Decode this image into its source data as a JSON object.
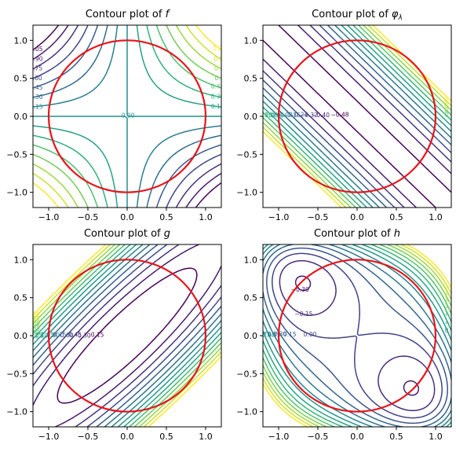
{
  "figure": {
    "background": "#ffffff"
  },
  "chart_data": [
    {
      "type": "contour",
      "title": "Contour plot of f",
      "title_main": "Contour plot of ",
      "title_symbol": "f",
      "function": "x*y",
      "xlim": [
        -1.2,
        1.2
      ],
      "ylim": [
        -1.2,
        1.2
      ],
      "xticks": [
        -1.0,
        -0.5,
        0.0,
        0.5,
        1.0
      ],
      "yticks": [
        -1.0,
        -0.5,
        0.0,
        0.5,
        1.0
      ],
      "xtick_labels": [
        "−1.0",
        "−0.5",
        "0.0",
        "0.5",
        "1.0"
      ],
      "ytick_labels": [
        "−1.0",
        "−0.5",
        "0.0",
        "0.5",
        "1.0"
      ],
      "levels": [
        -1.05,
        -0.9,
        -0.75,
        -0.6,
        -0.45,
        -0.3,
        -0.15,
        0.0,
        0.15,
        0.3,
        0.45,
        0.6,
        0.75,
        0.9,
        1.05
      ],
      "level_labels": [
        "−1.05",
        "−0.90",
        "−0.75",
        "−0.60",
        "−0.45",
        "−0.30",
        "−0.15",
        "0.00",
        "0.15",
        "0.30",
        "0.45",
        "0.60",
        "0.75",
        "0.90",
        "1.05"
      ],
      "colormap": "viridis",
      "constraint": {
        "shape": "circle",
        "center": [
          0,
          0
        ],
        "radius": 1.0,
        "color": "#e8141b"
      },
      "grid": false
    },
    {
      "type": "contour",
      "title": "Contour plot of φλ",
      "title_main": "Contour plot of ",
      "title_symbol": "φ",
      "title_subscript": "λ",
      "function": "x*y - lambda*(x^2 + y^2 - 1)",
      "lambda": -0.5,
      "xlim": [
        -1.2,
        1.2
      ],
      "ylim": [
        -1.2,
        1.2
      ],
      "xticks": [
        -1.0,
        -0.5,
        0.0,
        0.5,
        1.0
      ],
      "yticks": [
        -1.0,
        -0.5,
        0.0,
        0.5,
        1.0
      ],
      "xtick_labels": [
        "−1.0",
        "−0.5",
        "0.0",
        "0.5",
        "1.0"
      ],
      "ytick_labels": [
        "−1.0",
        "−0.5",
        "0.0",
        "0.5",
        "1.0"
      ],
      "levels": [
        -0.48,
        -0.4,
        -0.32,
        -0.24,
        -0.16,
        -0.08,
        0.0,
        0.08,
        0.16,
        0.24,
        0.32,
        0.4,
        0.48
      ],
      "level_labels": [
        "−0.48",
        "−0.40",
        "−0.32",
        "−0.24",
        "−0.16",
        "−0.08",
        "0.00",
        "0.08",
        "0.16",
        "0.24",
        "0.32",
        "0.40",
        "0.48"
      ],
      "colormap": "viridis",
      "constraint": {
        "shape": "circle",
        "center": [
          0,
          0
        ],
        "radius": 1.0,
        "color": "#e8141b"
      },
      "grid": false
    },
    {
      "type": "contour",
      "title": "Contour plot of g",
      "title_main": "Contour plot of ",
      "title_symbol": "g",
      "function": "x^2 + y^2 - 1.8*x*y",
      "xlim": [
        -1.2,
        1.2
      ],
      "ylim": [
        -1.2,
        1.2
      ],
      "xticks": [
        -1.0,
        -0.5,
        0.0,
        0.5,
        1.0
      ],
      "yticks": [
        -1.0,
        -0.5,
        0.0,
        0.5,
        1.0
      ],
      "xtick_labels": [
        "−1.0",
        "−0.5",
        "0.0",
        "0.5",
        "1.0"
      ],
      "ytick_labels": [
        "−1.0",
        "−0.5",
        "0.0",
        "0.5",
        "1.0"
      ],
      "levels": [
        0.15,
        0.3,
        0.45,
        0.6,
        0.75,
        0.9,
        1.05,
        1.2,
        1.35,
        1.5,
        1.65,
        1.8,
        1.95,
        2.1
      ],
      "level_labels": [
        "0.15",
        "0.30",
        "0.45",
        "0.60",
        "0.75",
        "0.90",
        "1.05",
        "1.20",
        "1.35",
        "1.50",
        "1.65",
        "1.80",
        "1.95",
        "2.10"
      ],
      "colormap": "viridis",
      "constraint": {
        "shape": "circle",
        "center": [
          0,
          0
        ],
        "radius": 1.0,
        "color": "#e8141b"
      },
      "grid": false
    },
    {
      "type": "contour",
      "title": "Contour plot of h",
      "title_main": "Contour plot of ",
      "title_symbol": "h",
      "function": "x*y + 0.5*(x^4 + y^4) - 0.15*(x^2 + y^2) ...",
      "xlim": [
        -1.2,
        1.2
      ],
      "ylim": [
        -1.2,
        1.2
      ],
      "xticks": [
        -1.0,
        -0.5,
        0.0,
        0.5,
        1.0
      ],
      "yticks": [
        -1.0,
        -0.5,
        0.0,
        0.5,
        1.0
      ],
      "xtick_labels": [
        "−1.0",
        "−0.5",
        "0.0",
        "0.5",
        "1.0"
      ],
      "ytick_labels": [
        "−1.0",
        "−0.5",
        "0.0",
        "0.5",
        "1.0"
      ],
      "levels": [
        -0.45,
        -0.3,
        -0.15,
        0.0,
        0.15,
        0.3,
        0.45,
        0.6,
        0.75,
        0.9,
        1.05,
        1.2,
        1.35,
        1.5,
        1.65,
        1.8
      ],
      "level_labels": [
        "−0.45",
        "−0.30",
        "−0.15",
        "0.00",
        "0.15",
        "0.30",
        "0.45",
        "0.60",
        "0.75",
        "0.90",
        "1.05",
        "1.20",
        "1.35",
        "1.50",
        "1.65",
        "1.80"
      ],
      "colormap": "viridis",
      "constraint": {
        "shape": "circle",
        "center": [
          0,
          0
        ],
        "radius": 1.0,
        "color": "#e8141b"
      },
      "grid": false
    }
  ]
}
